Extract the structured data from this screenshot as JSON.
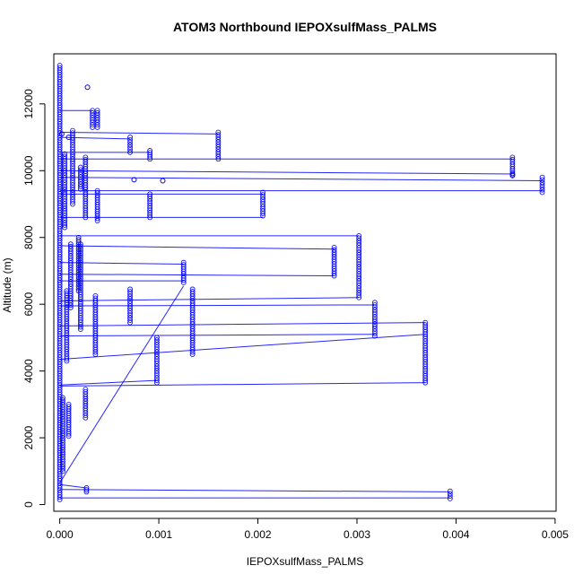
{
  "chart_data": {
    "type": "line",
    "title": "ATOM3 Northbound IEPOXsulfMass_PALMS",
    "xlabel": "IEPOXsulfMass_PALMS",
    "ylabel": "Altitude (m)",
    "xlim": [
      -6e-05,
      0.00501
    ],
    "ylim": [
      -200,
      13500
    ],
    "x_ticks": [
      0,
      0.001,
      0.002,
      0.003,
      0.004,
      0.005
    ],
    "x_tick_labels": [
      "0.000",
      "0.001",
      "0.002",
      "0.003",
      "0.004",
      "0.005"
    ],
    "y_ticks": [
      0,
      2000,
      4000,
      6000,
      8000,
      10000,
      12000
    ],
    "y_tick_labels": [
      "0",
      "2000",
      "4000",
      "6000",
      "8000",
      "10000",
      "12000"
    ],
    "series_color": "#0000ff",
    "marker": "open-circle",
    "line_segments": [
      {
        "x": [
          0,
          0.00394
        ],
        "y": [
          200,
          200
        ]
      },
      {
        "x": [
          0,
          0.00394
        ],
        "y": [
          450,
          380
        ]
      },
      {
        "x": [
          0,
          0.00027
        ],
        "y": [
          600,
          500
        ]
      },
      {
        "x": [
          0,
          0.00125
        ],
        "y": [
          650,
          6550
        ]
      },
      {
        "x": [
          0,
          0.00098
        ],
        "y": [
          3580,
          3720
        ]
      },
      {
        "x": [
          0,
          0.00369
        ],
        "y": [
          3550,
          3650
        ]
      },
      {
        "x": [
          0,
          0.00369
        ],
        "y": [
          4350,
          5100
        ]
      },
      {
        "x": [
          0,
          0.00318
        ],
        "y": [
          5050,
          5100
        ]
      },
      {
        "x": [
          0,
          0.00369
        ],
        "y": [
          5350,
          5450
        ]
      },
      {
        "x": [
          0,
          0.00318
        ],
        "y": [
          5950,
          5980
        ]
      },
      {
        "x": [
          0,
          0.00302
        ],
        "y": [
          6100,
          6200
        ]
      },
      {
        "x": [
          0,
          0.00125
        ],
        "y": [
          6700,
          6700
        ]
      },
      {
        "x": [
          0,
          0.00277
        ],
        "y": [
          6900,
          6850
        ]
      },
      {
        "x": [
          0,
          0.00125
        ],
        "y": [
          7250,
          7200
        ]
      },
      {
        "x": [
          0,
          0.00277
        ],
        "y": [
          7750,
          7650
        ]
      },
      {
        "x": [
          0,
          0.00302
        ],
        "y": [
          8050,
          8050
        ]
      },
      {
        "x": [
          0,
          0.00205
        ],
        "y": [
          8600,
          8600
        ]
      },
      {
        "x": [
          0,
          0.00205
        ],
        "y": [
          9300,
          9300
        ]
      },
      {
        "x": [
          0,
          0.00487
        ],
        "y": [
          9400,
          9400
        ]
      },
      {
        "x": [
          0,
          0.00487
        ],
        "y": [
          9800,
          9700
        ]
      },
      {
        "x": [
          0,
          0.00457
        ],
        "y": [
          10000,
          9900
        ]
      },
      {
        "x": [
          0,
          0.00457
        ],
        "y": [
          10350,
          10350
        ]
      },
      {
        "x": [
          0,
          0.00091
        ],
        "y": [
          10550,
          10550
        ]
      },
      {
        "x": [
          0,
          0.0016
        ],
        "y": [
          11150,
          11100
        ]
      },
      {
        "x": [
          0,
          0.00071
        ],
        "y": [
          11000,
          10950
        ]
      },
      {
        "x": [
          0,
          0.00033
        ],
        "y": [
          11800,
          11800
        ]
      }
    ],
    "point_series": [
      {
        "x": 0.0,
        "y_range": [
          150,
          13150
        ]
      },
      {
        "x": 0.00394,
        "y_range": [
          180,
          400
        ]
      },
      {
        "x": 0.00369,
        "y_range": [
          3650,
          5450
        ]
      },
      {
        "x": 0.00318,
        "y_range": [
          5050,
          6050
        ]
      },
      {
        "x": 0.00302,
        "y_range": [
          6200,
          8050
        ]
      },
      {
        "x": 0.00277,
        "y_range": [
          6850,
          7700
        ]
      },
      {
        "x": 0.00487,
        "y_range": [
          9350,
          9800
        ]
      },
      {
        "x": 0.00457,
        "y_range": [
          9850,
          10400
        ]
      },
      {
        "x": 0.00205,
        "y_range": [
          8650,
          9350
        ]
      },
      {
        "x": 0.0016,
        "y_range": [
          10350,
          11150
        ]
      },
      {
        "x": 0.00134,
        "y_range": [
          4500,
          6450
        ]
      },
      {
        "x": 0.00125,
        "y_range": [
          6650,
          7250
        ]
      },
      {
        "x": 0.00098,
        "y_range": [
          3650,
          5000
        ]
      },
      {
        "x": 0.00091,
        "y_range": [
          8600,
          9300
        ]
      },
      {
        "x": 0.00091,
        "y_range": [
          10350,
          10600
        ]
      },
      {
        "x": 0.00071,
        "y_range": [
          5450,
          6450
        ]
      },
      {
        "x": 0.00071,
        "y_range": [
          10550,
          11000
        ]
      },
      {
        "x": 0.00038,
        "y_range": [
          8500,
          9400
        ]
      },
      {
        "x": 0.00038,
        "y_range": [
          11300,
          11800
        ]
      },
      {
        "x": 0.00036,
        "y_range": [
          4500,
          6250
        ]
      },
      {
        "x": 0.00033,
        "y_range": [
          11300,
          11800
        ]
      },
      {
        "x": 0.00027,
        "y_range": [
          380,
          500
        ]
      },
      {
        "x": 0.00026,
        "y_range": [
          2600,
          3450
        ]
      },
      {
        "x": 0.00026,
        "y_range": [
          8600,
          10400
        ]
      },
      {
        "x": 0.00021,
        "y_range": [
          9450,
          10100
        ]
      },
      {
        "x": 0.00021,
        "y_range": [
          5250,
          7800
        ]
      },
      {
        "x": 0.00019,
        "y_range": [
          6400,
          8000
        ]
      },
      {
        "x": 0.00013,
        "y_range": [
          9000,
          11200
        ]
      },
      {
        "x": 0.00011,
        "y_range": [
          5900,
          7800
        ]
      },
      {
        "x": 9e-05,
        "y_range": [
          2050,
          3000
        ]
      },
      {
        "x": 7e-05,
        "y_range": [
          4300,
          6400
        ]
      },
      {
        "x": 5e-05,
        "y_range": [
          8300,
          10500
        ]
      },
      {
        "x": 3e-05,
        "y_range": [
          1000,
          3200
        ]
      }
    ],
    "isolated_points": [
      {
        "x": 0.00028,
        "y": 12500
      },
      {
        "x": 0.00104,
        "y": 9700
      },
      {
        "x": 0.00075,
        "y": 9730
      },
      {
        "x": 0.00457,
        "y": 9880
      },
      {
        "x": 9e-05,
        "y": 11000
      },
      {
        "x": 2e-05,
        "y": 11100
      }
    ]
  }
}
